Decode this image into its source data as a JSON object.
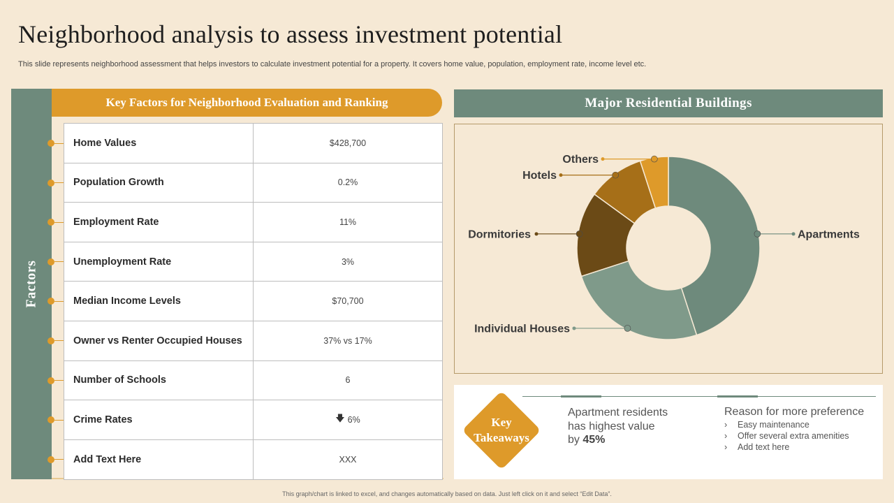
{
  "title": "Neighborhood analysis to assess investment potential",
  "subtitle": "This slide represents neighborhood assessment that helps investors to calculate investment potential for a property.  It covers home value, population, employment rate, income level etc.",
  "left": {
    "side_label": "Factors",
    "header": "Key Factors for Neighborhood Evaluation and Ranking",
    "rows": [
      {
        "label": "Home Values",
        "value": "$428,700"
      },
      {
        "label": "Population Growth",
        "value": "0.2%"
      },
      {
        "label": "Employment Rate",
        "value": "11%"
      },
      {
        "label": "Unemployment Rate",
        "value": "3%"
      },
      {
        "label": "Median Income Levels",
        "value": "$70,700"
      },
      {
        "label": "Owner vs Renter Occupied Houses",
        "value": "37% vs  17%"
      },
      {
        "label": "Number of Schools",
        "value": "6"
      },
      {
        "label": "Crime Rates",
        "value": "6%",
        "icon": "arrow-down-icon"
      },
      {
        "label": "Add  Text Here",
        "value": "XXX"
      }
    ]
  },
  "right": {
    "header": "Major Residential  Buildings"
  },
  "chart_data": {
    "type": "pie",
    "title": "Major Residential  Buildings",
    "donut": true,
    "slices": [
      {
        "label": "Apartments",
        "value": 45,
        "color": "#6e8a7c"
      },
      {
        "label": "Individual Houses",
        "value": 25,
        "color": "#7f9a8a"
      },
      {
        "label": "Dormitories",
        "value": 15,
        "color": "#6b4a16"
      },
      {
        "label": "Hotels",
        "value": 10,
        "color": "#a66f18"
      },
      {
        "label": "Others",
        "value": 5,
        "color": "#de9a2a"
      }
    ]
  },
  "takeaways": {
    "badge_line1": "Key",
    "badge_line2": "Takeaways",
    "left_line1": "Apartment residents",
    "left_line2": "has highest value",
    "left_line3_prefix": "by ",
    "left_line3_value": "45%",
    "right_title": "Reason for more preference",
    "right_items": [
      "Easy maintenance",
      "Offer  several  extra amenities",
      "Add text here"
    ],
    "bullet_glyph": "›"
  },
  "footer": "This graph/chart is linked to excel, and changes automatically based on data. Just left click on it and select “Edit Data”.",
  "colors": {
    "accent": "#de9a2a",
    "sage": "#6e8a7c",
    "background": "#f6e9d5"
  }
}
